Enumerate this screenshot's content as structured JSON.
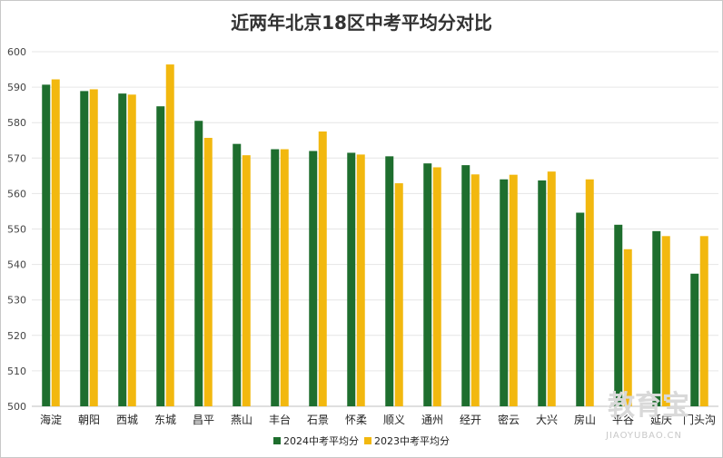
{
  "chart_data": {
    "type": "bar",
    "title": "近两年北京18区中考平均分对比",
    "xlabel": "",
    "ylabel": "",
    "ylim": [
      500,
      600
    ],
    "yticks": [
      500,
      510,
      520,
      530,
      540,
      550,
      560,
      570,
      580,
      590,
      600
    ],
    "grid": true,
    "legend_position": "bottom",
    "categories": [
      "海淀",
      "朝阳",
      "西城",
      "东城",
      "昌平",
      "燕山",
      "丰台",
      "石景",
      "怀柔",
      "顺义",
      "通州",
      "经开",
      "密云",
      "大兴",
      "房山",
      "平谷",
      "延庆",
      "门头沟"
    ],
    "series": [
      {
        "name": "2024中考平均分",
        "color": "#1e6e2e",
        "values": [
          590.7,
          588.9,
          588.2,
          584.6,
          580.5,
          574.0,
          572.5,
          572.0,
          571.5,
          570.5,
          568.5,
          568.0,
          564.0,
          563.7,
          554.6,
          551.2,
          549.4,
          537.4
        ]
      },
      {
        "name": "2023中考平均分",
        "color": "#f2b80f",
        "values": [
          592.2,
          589.4,
          587.9,
          596.4,
          575.7,
          570.8,
          572.5,
          577.5,
          571.0,
          562.9,
          567.4,
          565.4,
          565.3,
          566.2,
          564.0,
          544.3,
          548.0,
          548.0
        ]
      }
    ]
  },
  "watermark": {
    "text": "教育宝",
    "url": "JIAOYUBAO.CN"
  }
}
